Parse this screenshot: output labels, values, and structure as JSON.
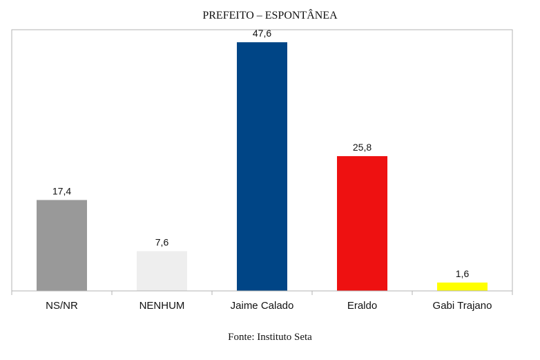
{
  "chart_data": {
    "type": "bar",
    "title": "PREFEITO – ESPONTÂNEA",
    "categories": [
      "NS/NR",
      "NENHUM",
      "Jaime Calado",
      "Eraldo",
      "Gabi Trajano"
    ],
    "values": [
      17.4,
      7.6,
      47.6,
      25.8,
      1.6
    ],
    "value_labels": [
      "17,4",
      "7,6",
      "47,6",
      "25,8",
      "1,6"
    ],
    "colors": [
      "#999999",
      "#eeeeee",
      "#004586",
      "#ee1111",
      "#ffff00"
    ],
    "ylim": [
      0,
      50
    ],
    "grid": false,
    "source": "Fonte: Instituto Seta"
  }
}
